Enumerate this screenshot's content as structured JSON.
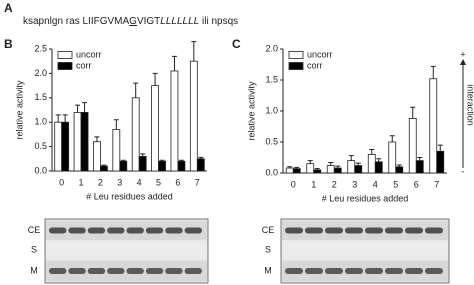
{
  "header": {
    "panel_label": "A",
    "sequence": [
      "ksapnlgn ras LIIFGVMA",
      "G",
      "VIGT",
      "LLLLLLL",
      " ili npsqs"
    ]
  },
  "chart_data": [
    {
      "type": "bar",
      "panel_label": "B",
      "xlabel": "# Leu residues added",
      "ylabel": "relative activity",
      "categories": [
        "0",
        "1",
        "2",
        "3",
        "4",
        "5",
        "6",
        "7"
      ],
      "series": [
        {
          "name": "uncorr",
          "color": "#ffffff",
          "values": [
            1.0,
            1.2,
            0.6,
            0.85,
            1.5,
            1.75,
            2.05,
            2.25
          ],
          "errors": [
            0.15,
            0.15,
            0.1,
            0.2,
            0.3,
            0.25,
            0.3,
            0.4
          ]
        },
        {
          "name": "corr",
          "color": "#000000",
          "values": [
            1.0,
            1.2,
            0.1,
            0.2,
            0.3,
            0.2,
            0.2,
            0.25
          ],
          "errors": [
            0.15,
            0.2,
            0.02,
            0.02,
            0.05,
            0.02,
            0.02,
            0.03
          ]
        }
      ],
      "ylim": [
        0,
        2.5
      ],
      "yticks": [
        {
          "value": 0,
          "label": "0.0"
        },
        0.5,
        {
          "value": 1,
          "label": "1.0"
        },
        1.5,
        {
          "value": 2,
          "label": "2.0"
        },
        2.5
      ],
      "legend": "upper left",
      "blot_labels": [
        "CE",
        "S",
        "M"
      ]
    },
    {
      "type": "bar",
      "panel_label": "C",
      "xlabel": "# Leu residues added",
      "ylabel": "relative activity",
      "categories": [
        "0",
        "1",
        "2",
        "3",
        "4",
        "5",
        "6",
        "7"
      ],
      "series": [
        {
          "name": "uncorr",
          "color": "#ffffff",
          "values": [
            0.08,
            0.15,
            0.12,
            0.2,
            0.3,
            0.5,
            0.88,
            1.52
          ],
          "errors": [
            0.02,
            0.05,
            0.05,
            0.08,
            0.08,
            0.1,
            0.18,
            0.2
          ]
        },
        {
          "name": "corr",
          "color": "#000000",
          "values": [
            0.07,
            0.05,
            0.08,
            0.12,
            0.18,
            0.1,
            0.2,
            0.35
          ],
          "errors": [
            0.02,
            0.02,
            0.03,
            0.04,
            0.05,
            0.03,
            0.05,
            0.1
          ]
        }
      ],
      "ylim": [
        0,
        2
      ],
      "yticks": [
        {
          "value": 0,
          "label": "0.0"
        },
        0.5,
        {
          "value": 1,
          "label": "1.0"
        },
        1.5,
        {
          "value": 2,
          "label": "2.0"
        }
      ],
      "legend": "upper left",
      "blot_labels": [
        "CE",
        "S",
        "M"
      ],
      "annotation": {
        "top": "+",
        "bottom": "-",
        "text": "interaction"
      }
    }
  ]
}
